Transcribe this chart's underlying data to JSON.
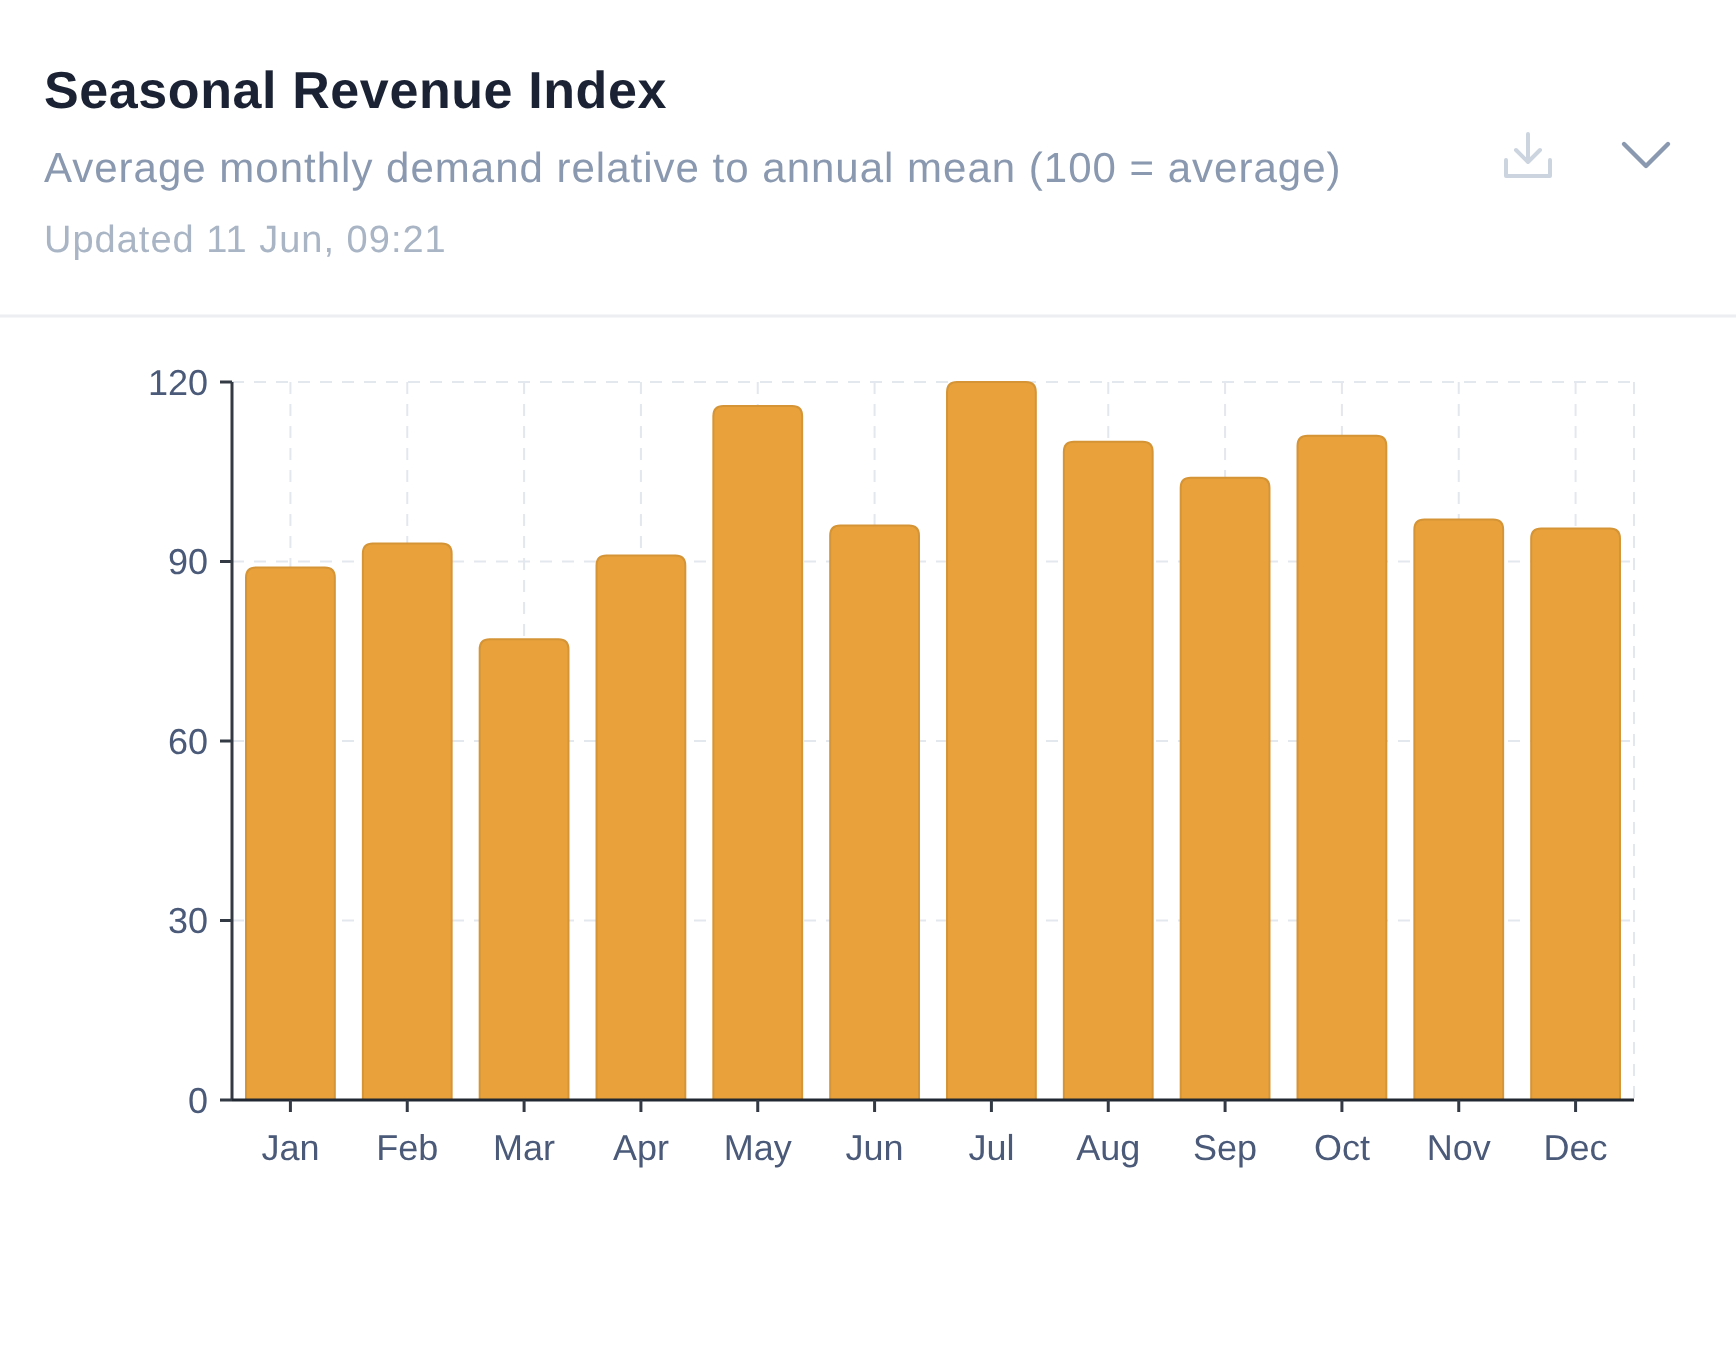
{
  "chart_data": {
    "type": "bar",
    "title": "Seasonal Revenue Index",
    "subtitle": "Average monthly demand relative to annual mean (100 = average)",
    "annotations": [
      "Updated 11 Jun, 09:21"
    ],
    "categories": [
      "Jan",
      "Feb",
      "Mar",
      "Apr",
      "May",
      "Jun",
      "Jul",
      "Aug",
      "Sep",
      "Oct",
      "Nov",
      "Dec"
    ],
    "values": [
      89,
      93,
      77,
      91,
      116,
      96,
      120,
      110,
      104,
      111,
      97,
      95.5
    ],
    "color": "#e9a23b",
    "ylim": [
      0,
      120
    ],
    "yticks": [
      0,
      30,
      60,
      90,
      120
    ],
    "grid": true
  }
}
